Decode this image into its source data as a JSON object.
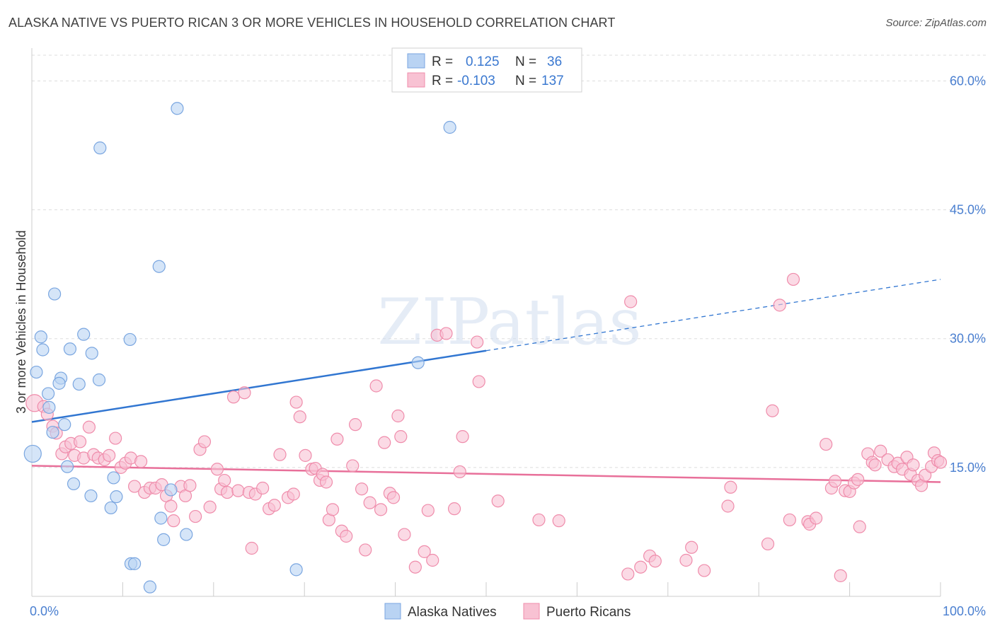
{
  "title": "ALASKA NATIVE VS PUERTO RICAN 3 OR MORE VEHICLES IN HOUSEHOLD CORRELATION CHART",
  "source": "Source: ZipAtlas.com",
  "watermark": "ZIPatlas",
  "colors": {
    "blue_fill": "#b9d3f3",
    "blue_stroke": "#7aa6e0",
    "blue_line": "#3176d1",
    "pink_fill": "#f8c2d3",
    "pink_stroke": "#ef8cab",
    "pink_line": "#e8709a",
    "axis_text": "#4a7fd0",
    "grid": "#dddddd"
  },
  "legend": {
    "rows": [
      {
        "r_label": "R =",
        "r_value": "0.125",
        "n_label": "N =",
        "n_value": "36"
      },
      {
        "r_label": "R =",
        "r_value": "-0.103",
        "n_label": "N =",
        "n_value": "137"
      }
    ]
  },
  "bottom_legend": [
    "Alaska Natives",
    "Puerto Ricans"
  ],
  "chart_data": {
    "type": "scatter",
    "title": "ALASKA NATIVE VS PUERTO RICAN 3 OR MORE VEHICLES IN HOUSEHOLD CORRELATION CHART",
    "xlabel": "",
    "ylabel": "3 or more Vehicles in Household",
    "xlim": [
      0,
      100
    ],
    "ylim": [
      0,
      63
    ],
    "x_tick_labels": [
      "0.0%",
      "100.0%"
    ],
    "y_ticks": [
      15,
      30,
      45,
      60
    ],
    "y_tick_labels": [
      "15.0%",
      "30.0%",
      "45.0%",
      "60.0%"
    ],
    "grid": true,
    "legend_position": "top-center",
    "series": [
      {
        "name": "Alaska Natives",
        "color": "blue",
        "trend": {
          "x0": 0,
          "y0": 20.3,
          "x1": 50,
          "y1": 28.6,
          "dashed_to_x": 100,
          "dashed_to_y": 36.9
        },
        "points": [
          [
            16,
            56.8
          ],
          [
            7.5,
            52.2
          ],
          [
            46,
            54.6
          ],
          [
            14,
            38.4
          ],
          [
            2.5,
            35.2
          ],
          [
            1,
            30.2
          ],
          [
            5.7,
            30.5
          ],
          [
            10.8,
            29.9
          ],
          [
            1.2,
            28.7
          ],
          [
            4.2,
            28.8
          ],
          [
            6.6,
            28.3
          ],
          [
            42.5,
            27.2
          ],
          [
            0.5,
            26.1
          ],
          [
            3.2,
            25.4
          ],
          [
            3,
            24.8
          ],
          [
            5.2,
            24.7
          ],
          [
            7.4,
            25.2
          ],
          [
            1.8,
            23.6
          ],
          [
            1.9,
            22
          ],
          [
            3.6,
            20
          ],
          [
            2.3,
            19.1
          ],
          [
            3.9,
            15.1
          ],
          [
            0.1,
            16.6
          ],
          [
            9,
            13.8
          ],
          [
            4.6,
            13.1
          ],
          [
            6.5,
            11.7
          ],
          [
            9.3,
            11.6
          ],
          [
            8.7,
            10.3
          ],
          [
            15.3,
            12.4
          ],
          [
            14.2,
            9.1
          ],
          [
            14.5,
            6.6
          ],
          [
            17,
            7.2
          ],
          [
            10.9,
            3.8
          ],
          [
            11.3,
            3.8
          ],
          [
            29.1,
            3.1
          ],
          [
            13,
            1.1
          ]
        ]
      },
      {
        "name": "Puerto Ricans",
        "color": "pink",
        "trend": {
          "x0": 0,
          "y0": 15.2,
          "x1": 100,
          "y1": 13.3
        },
        "points": [
          [
            0.3,
            22.5
          ],
          [
            1.3,
            22.1
          ],
          [
            1.7,
            21.2
          ],
          [
            2.3,
            19.8
          ],
          [
            2.7,
            19
          ],
          [
            3.3,
            16.6
          ],
          [
            3.7,
            17.4
          ],
          [
            4.3,
            17.8
          ],
          [
            4.7,
            16.4
          ],
          [
            5.3,
            18
          ],
          [
            5.7,
            16.1
          ],
          [
            6.3,
            19.7
          ],
          [
            6.8,
            16.5
          ],
          [
            7.3,
            16.1
          ],
          [
            8,
            15.9
          ],
          [
            8.5,
            16.4
          ],
          [
            9.2,
            18.4
          ],
          [
            9.8,
            15
          ],
          [
            10.3,
            15.5
          ],
          [
            10.9,
            16.1
          ],
          [
            11.3,
            12.8
          ],
          [
            12,
            15.7
          ],
          [
            12.4,
            12.1
          ],
          [
            13,
            12.6
          ],
          [
            13.6,
            12.6
          ],
          [
            14.3,
            13
          ],
          [
            14.8,
            11.7
          ],
          [
            15.3,
            10.5
          ],
          [
            15.6,
            8.8
          ],
          [
            16.4,
            12.8
          ],
          [
            16.9,
            11.7
          ],
          [
            17.4,
            12.9
          ],
          [
            18,
            9.3
          ],
          [
            18.5,
            17.1
          ],
          [
            19,
            18
          ],
          [
            19.6,
            10.4
          ],
          [
            20.4,
            14.8
          ],
          [
            20.8,
            12.5
          ],
          [
            21.2,
            13.5
          ],
          [
            21.5,
            12.1
          ],
          [
            22.2,
            23.2
          ],
          [
            22.7,
            12.3
          ],
          [
            23.4,
            23.7
          ],
          [
            23.9,
            12.1
          ],
          [
            24.2,
            5.6
          ],
          [
            24.6,
            11.9
          ],
          [
            25.4,
            12.6
          ],
          [
            26.1,
            10.2
          ],
          [
            26.7,
            10.6
          ],
          [
            27.3,
            16.5
          ],
          [
            28.2,
            11.5
          ],
          [
            28.8,
            11.9
          ],
          [
            29.1,
            22.6
          ],
          [
            29.5,
            20.9
          ],
          [
            30.1,
            16.4
          ],
          [
            30.8,
            14.8
          ],
          [
            31.2,
            14.9
          ],
          [
            31.7,
            13.5
          ],
          [
            32,
            14.2
          ],
          [
            32.4,
            13.3
          ],
          [
            32.7,
            8.9
          ],
          [
            33.1,
            10.1
          ],
          [
            33.6,
            18.3
          ],
          [
            34.1,
            7.6
          ],
          [
            34.6,
            7
          ],
          [
            35.3,
            15.2
          ],
          [
            35.6,
            20
          ],
          [
            36.3,
            12.5
          ],
          [
            36.7,
            5.4
          ],
          [
            37.2,
            10.9
          ],
          [
            37.9,
            24.5
          ],
          [
            38.4,
            10.1
          ],
          [
            38.8,
            17.9
          ],
          [
            39.4,
            12
          ],
          [
            39.8,
            11.5
          ],
          [
            40.3,
            21
          ],
          [
            40.6,
            18.6
          ],
          [
            41,
            7.2
          ],
          [
            42.2,
            3.4
          ],
          [
            43.2,
            5.2
          ],
          [
            43.6,
            10
          ],
          [
            44.1,
            4.2
          ],
          [
            44.6,
            30.4
          ],
          [
            45.6,
            30.6
          ],
          [
            46.5,
            10.2
          ],
          [
            47.1,
            14.5
          ],
          [
            47.4,
            18.6
          ],
          [
            49,
            29.6
          ],
          [
            49.2,
            25
          ],
          [
            51.3,
            11.1
          ],
          [
            55.8,
            8.9
          ],
          [
            58,
            8.8
          ],
          [
            65.6,
            2.6
          ],
          [
            65.9,
            34.3
          ],
          [
            67,
            3.4
          ],
          [
            68,
            4.7
          ],
          [
            68.6,
            4.1
          ],
          [
            72,
            4.2
          ],
          [
            72.6,
            5.7
          ],
          [
            74,
            3
          ],
          [
            76.6,
            10.5
          ],
          [
            76.9,
            12.7
          ],
          [
            81,
            6.1
          ],
          [
            81.5,
            21.6
          ],
          [
            82.3,
            33.9
          ],
          [
            83.4,
            8.9
          ],
          [
            83.8,
            36.9
          ],
          [
            85.4,
            8.7
          ],
          [
            85.6,
            8.4
          ],
          [
            86.3,
            9.1
          ],
          [
            87.4,
            17.7
          ],
          [
            88,
            12.6
          ],
          [
            88.4,
            13.4
          ],
          [
            89,
            2.4
          ],
          [
            89.5,
            12.3
          ],
          [
            90,
            12.2
          ],
          [
            90.5,
            13.2
          ],
          [
            90.9,
            13.6
          ],
          [
            91.1,
            8.1
          ],
          [
            92,
            16.6
          ],
          [
            92.5,
            15.6
          ],
          [
            93.4,
            16.9
          ],
          [
            94.2,
            15.9
          ],
          [
            94.9,
            15.1
          ],
          [
            95.3,
            15.5
          ],
          [
            95.8,
            14.8
          ],
          [
            96.3,
            16.2
          ],
          [
            96.7,
            14.2
          ],
          [
            97,
            15.3
          ],
          [
            97.5,
            13.5
          ],
          [
            97.9,
            12.9
          ],
          [
            98.3,
            14.1
          ],
          [
            99,
            15.1
          ],
          [
            99.3,
            16.7
          ],
          [
            99.7,
            15.8
          ],
          [
            100,
            15.6
          ],
          [
            92.8,
            15.3
          ]
        ]
      }
    ]
  }
}
